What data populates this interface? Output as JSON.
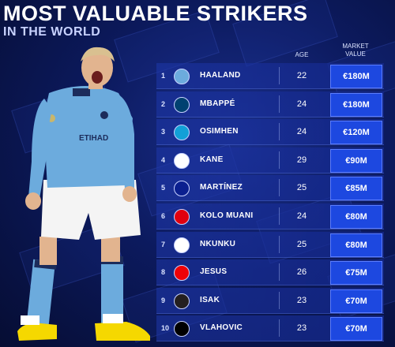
{
  "header": {
    "title": "MOST VALUABLE STRIKERS",
    "subtitle": "IN THE WORLD"
  },
  "columns": {
    "age": "AGE",
    "market_value_line1": "MARKET",
    "market_value_line2": "VALUE"
  },
  "colors": {
    "background": "#0c1a5e",
    "row": "#1e37aa",
    "value_box": "#1d48e0",
    "text": "#ffffff"
  },
  "players": [
    {
      "rank": "1",
      "name": "HAALAND",
      "age": "22",
      "value": "€180M",
      "crest_color": "#6cabdd"
    },
    {
      "rank": "2",
      "name": "MBAPPÉ",
      "age": "24",
      "value": "€180M",
      "crest_color": "#004170"
    },
    {
      "rank": "3",
      "name": "OSIMHEN",
      "age": "24",
      "value": "€120M",
      "crest_color": "#12a0d7"
    },
    {
      "rank": "4",
      "name": "KANE",
      "age": "29",
      "value": "€90M",
      "crest_color": "#ffffff"
    },
    {
      "rank": "5",
      "name": "MARTÍNEZ",
      "age": "25",
      "value": "€85M",
      "crest_color": "#0a1f8f"
    },
    {
      "rank": "6",
      "name": "KOLO MUANI",
      "age": "24",
      "value": "€80M",
      "crest_color": "#e1000f"
    },
    {
      "rank": "7",
      "name": "NKUNKU",
      "age": "25",
      "value": "€80M",
      "crest_color": "#ffffff"
    },
    {
      "rank": "8",
      "name": "JESUS",
      "age": "26",
      "value": "€75M",
      "crest_color": "#ef0107"
    },
    {
      "rank": "9",
      "name": "ISAK",
      "age": "23",
      "value": "€70M",
      "crest_color": "#241f20"
    },
    {
      "rank": "10",
      "name": "VLAHOVIC",
      "age": "23",
      "value": "€70M",
      "crest_color": "#000000"
    }
  ]
}
